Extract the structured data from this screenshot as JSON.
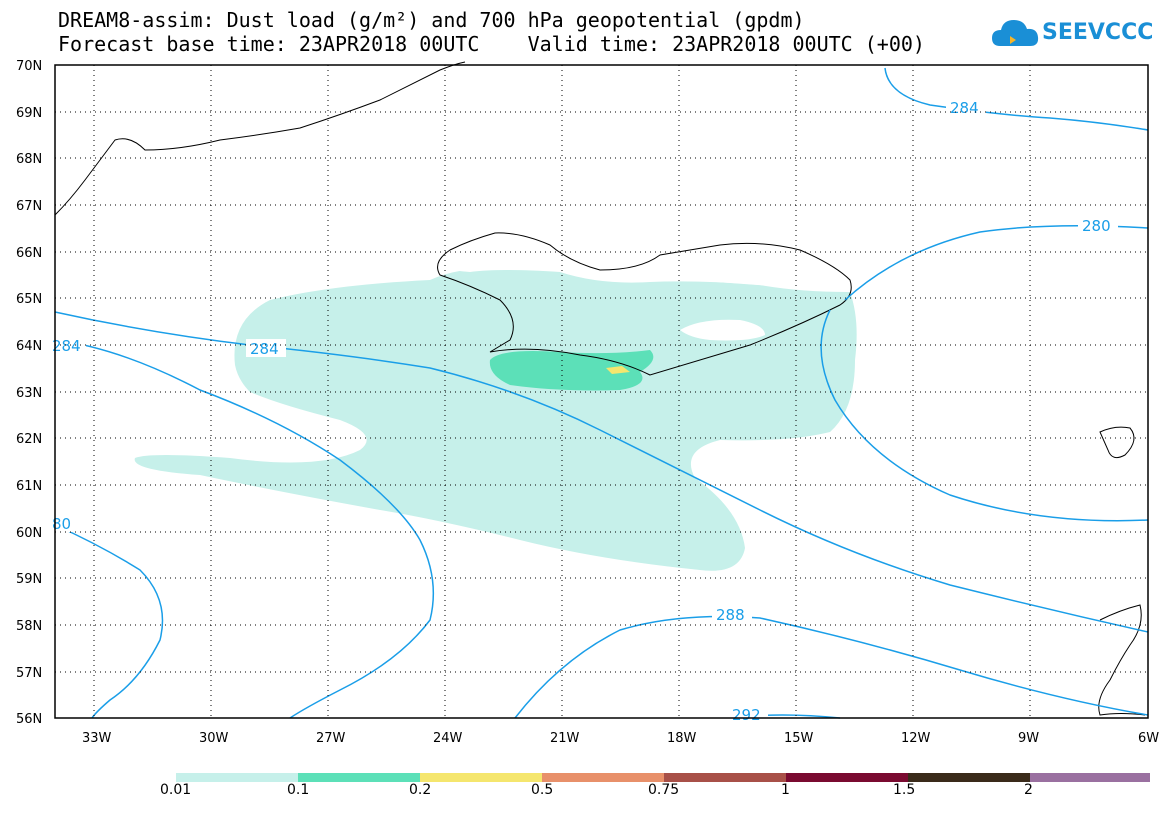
{
  "header": {
    "title_line1": "DREAM8-assim: Dust load (g/m²) and 700 hPa geopotential (gpdm)",
    "title_line2": "Forecast base time: 23APR2018 00UTC    Valid time: 23APR2018 00UTC (+00)"
  },
  "logo": {
    "text": "SEEVCCC",
    "icon": "cloud-icon"
  },
  "map": {
    "lat_labels": [
      "70N",
      "69N",
      "68N",
      "67N",
      "66N",
      "65N",
      "64N",
      "63N",
      "62N",
      "61N",
      "60N",
      "59N",
      "58N",
      "57N",
      "56N"
    ],
    "lon_labels": [
      "33W",
      "30W",
      "27W",
      "24W",
      "21W",
      "18W",
      "15W",
      "12W",
      "9W",
      "6W"
    ],
    "contour_labels": [
      "284",
      "280",
      "284",
      "284",
      "288",
      "292",
      "80"
    ],
    "grid": "dotted",
    "region": "North Atlantic / Iceland"
  },
  "colorbar": {
    "colors": [
      "#c6f0ea",
      "#5ce0b8",
      "#f5e66e",
      "#e8906a",
      "#a85048",
      "#7a0a30",
      "#3a2a1a",
      "#9a70a0"
    ],
    "labels": [
      "0.01",
      "0.1",
      "0.2",
      "0.5",
      "0.75",
      "1",
      "1.5",
      "2"
    ]
  },
  "colors": {
    "contour": "#1a9ee8",
    "frame": "#000000"
  }
}
